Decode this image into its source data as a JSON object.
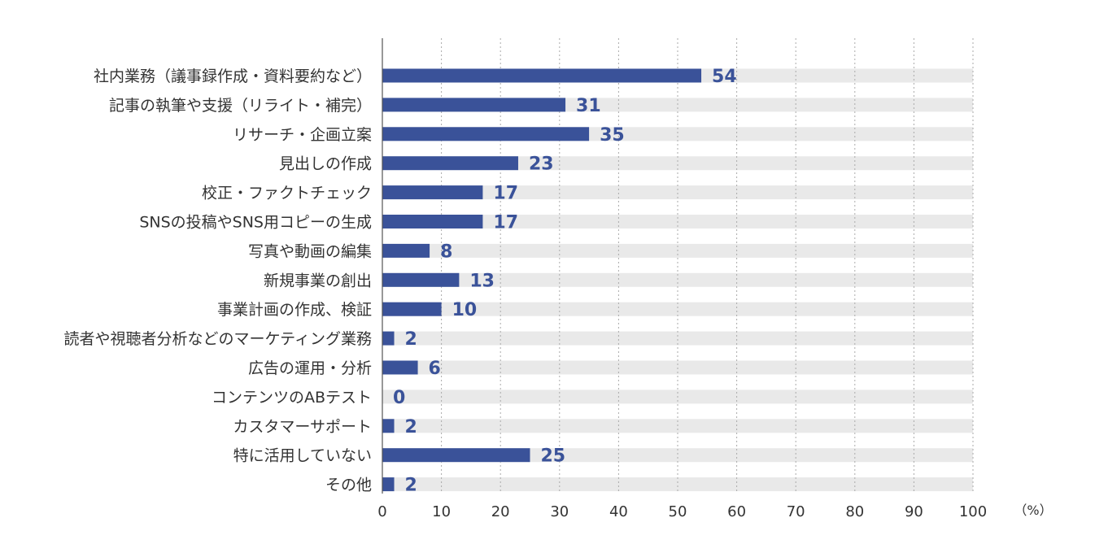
{
  "chart_data": {
    "type": "bar",
    "orientation": "horizontal",
    "categories": [
      "社内業務（議事録作成・資料要約など）",
      "記事の執筆や支援（リライト・補完）",
      "リサーチ・企画立案",
      "見出しの作成",
      "校正・ファクトチェック",
      "SNSの投稿やSNS用コピーの生成",
      "写真や動画の編集",
      "新規事業の創出",
      "事業計画の作成、検証",
      "読者や視聴者分析などのマーケティング業務",
      "広告の運用・分析",
      "コンテンツのABテスト",
      "カスタマーサポート",
      "特に活用していない",
      "その他"
    ],
    "values": [
      54,
      31,
      35,
      23,
      17,
      17,
      8,
      13,
      10,
      2,
      6,
      0,
      2,
      25,
      2
    ],
    "xlim": [
      0,
      100
    ],
    "x_ticks": [
      0,
      10,
      20,
      30,
      40,
      50,
      60,
      70,
      80,
      90,
      100
    ],
    "unit": "（%）",
    "grid": "vertical dotted",
    "show_background_track": true,
    "colors": {
      "bar": "#3a5299",
      "track": "#e9e9e9",
      "label": "#3a5299",
      "axis": "#555555",
      "grid": "#aaaaaa"
    }
  }
}
